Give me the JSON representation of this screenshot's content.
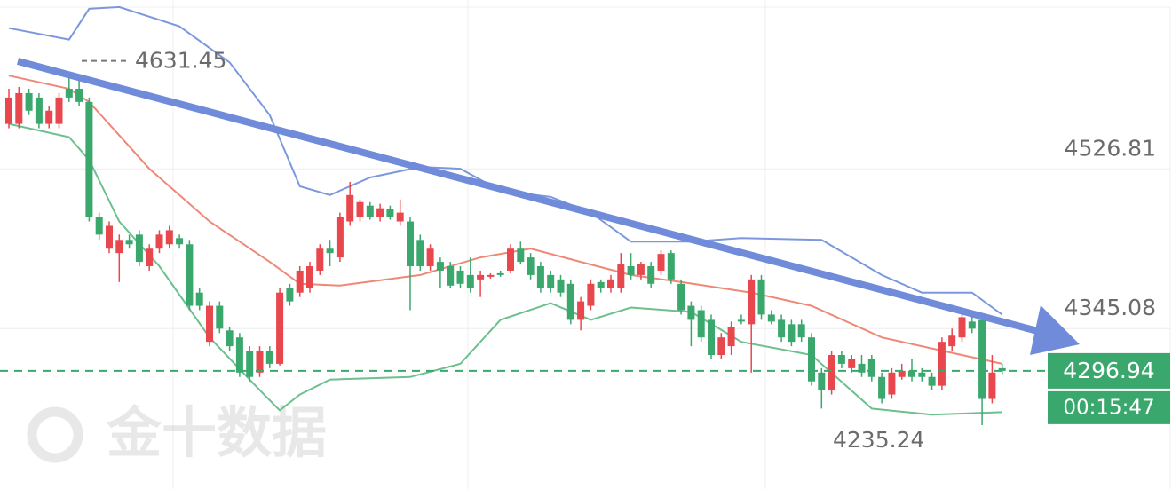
{
  "chart_data": {
    "type": "candlestick",
    "ylim": [
      4162.5,
      4719
    ],
    "yticks": [
      4526.81,
      4345.08
    ],
    "up_color": "#e8474d",
    "down_color": "#3aa76d",
    "last_price": 4296.94,
    "countdown": "00:15:47",
    "max_label": 4631.45,
    "min_label": 4235.24,
    "watermark": "金十数据",
    "ohlc": [
      [
        4578,
        4618,
        4573,
        4608
      ],
      [
        4578,
        4620,
        4573,
        4613
      ],
      [
        4613,
        4618,
        4588,
        4593
      ],
      [
        4608,
        4613,
        4573,
        4578
      ],
      [
        4578,
        4598,
        4573,
        4593
      ],
      [
        4578,
        4613,
        4573,
        4608
      ],
      [
        4618,
        4631.45,
        4603,
        4608
      ],
      [
        4618,
        4628,
        4598,
        4603
      ],
      [
        4603,
        4608,
        4467,
        4472
      ],
      [
        4472,
        4477,
        4446,
        4452
      ],
      [
        4436,
        4467,
        4431,
        4462
      ],
      [
        4431,
        4452,
        4398,
        4446
      ],
      [
        4446,
        4452,
        4436,
        4441
      ],
      [
        4452,
        4457,
        4416,
        4421
      ],
      [
        4416,
        4441,
        4411,
        4436
      ],
      [
        4436,
        4457,
        4431,
        4452
      ],
      [
        4441,
        4462,
        4436,
        4457
      ],
      [
        4448,
        4452,
        4436,
        4441
      ],
      [
        4441,
        4446,
        4366,
        4371
      ],
      [
        4386,
        4391,
        4366,
        4371
      ],
      [
        4330,
        4376,
        4325,
        4371
      ],
      [
        4371,
        4376,
        4340,
        4345
      ],
      [
        4343,
        4347,
        4320,
        4325
      ],
      [
        4335,
        4340,
        4290,
        4295
      ],
      [
        4320,
        4325,
        4285,
        4290
      ],
      [
        4295,
        4325,
        4290,
        4320
      ],
      [
        4320,
        4325,
        4300,
        4305
      ],
      [
        4305,
        4391,
        4303,
        4386
      ],
      [
        4391,
        4396,
        4371,
        4376
      ],
      [
        4386,
        4416,
        4381,
        4411
      ],
      [
        4391,
        4421,
        4386,
        4416
      ],
      [
        4411,
        4441,
        4406,
        4436
      ],
      [
        4436,
        4446,
        4416,
        4431
      ],
      [
        4426,
        4477,
        4421,
        4472
      ],
      [
        4467,
        4512,
        4462,
        4497
      ],
      [
        4472,
        4492,
        4467,
        4489
      ],
      [
        4485,
        4489,
        4469,
        4472
      ],
      [
        4472,
        4487,
        4467,
        4482
      ],
      [
        4481,
        4485,
        4469,
        4472
      ],
      [
        4467,
        4492,
        4462,
        4477
      ],
      [
        4467,
        4472,
        4366,
        4416
      ],
      [
        4446,
        4452,
        4411,
        4416
      ],
      [
        4416,
        4441,
        4411,
        4436
      ],
      [
        4421,
        4426,
        4391,
        4411
      ],
      [
        4416,
        4421,
        4391,
        4394
      ],
      [
        4411,
        4416,
        4391,
        4396
      ],
      [
        4406,
        4426,
        4386,
        4391
      ],
      [
        4401,
        4411,
        4381,
        4406
      ],
      [
        4404,
        4408,
        4402,
        4406
      ],
      [
        4408,
        4411,
        4404,
        4406
      ],
      [
        4411,
        4441,
        4408,
        4436
      ],
      [
        4436,
        4444,
        4418,
        4421
      ],
      [
        4426,
        4431,
        4401,
        4406
      ],
      [
        4416,
        4421,
        4386,
        4391
      ],
      [
        4406,
        4411,
        4386,
        4391
      ],
      [
        4401,
        4406,
        4381,
        4386
      ],
      [
        4396,
        4401,
        4350,
        4355
      ],
      [
        4355,
        4381,
        4343,
        4376
      ],
      [
        4371,
        4401,
        4366,
        4396
      ],
      [
        4398,
        4401,
        4386,
        4391
      ],
      [
        4391,
        4406,
        4386,
        4401
      ],
      [
        4391,
        4431,
        4386,
        4418
      ],
      [
        4416,
        4431,
        4401,
        4406
      ],
      [
        4406,
        4421,
        4401,
        4418
      ],
      [
        4416,
        4421,
        4391,
        4396
      ],
      [
        4411,
        4434,
        4406,
        4430
      ],
      [
        4431,
        4434,
        4396,
        4401
      ],
      [
        4396,
        4401,
        4361,
        4366
      ],
      [
        4371,
        4376,
        4325,
        4355
      ],
      [
        4366,
        4371,
        4330,
        4335
      ],
      [
        4355,
        4361,
        4310,
        4315
      ],
      [
        4315,
        4340,
        4310,
        4335
      ],
      [
        4325,
        4353,
        4315,
        4347
      ],
      [
        4355,
        4361,
        4350,
        4353
      ],
      [
        4350,
        4406,
        4295,
        4401
      ],
      [
        4401,
        4406,
        4355,
        4361
      ],
      [
        4361,
        4366,
        4350,
        4353
      ],
      [
        4355,
        4361,
        4330,
        4335
      ],
      [
        4350,
        4355,
        4325,
        4330
      ],
      [
        4350,
        4355,
        4330,
        4335
      ],
      [
        4335,
        4340,
        4280,
        4285
      ],
      [
        4295,
        4300,
        4254,
        4275
      ],
      [
        4275,
        4320,
        4270,
        4315
      ],
      [
        4315,
        4320,
        4300,
        4305
      ],
      [
        4300,
        4315,
        4295,
        4310
      ],
      [
        4305,
        4315,
        4290,
        4295
      ],
      [
        4310,
        4315,
        4285,
        4290
      ],
      [
        4290,
        4295,
        4260,
        4265
      ],
      [
        4270,
        4300,
        4265,
        4295
      ],
      [
        4290,
        4305,
        4287,
        4297
      ],
      [
        4297,
        4310,
        4285,
        4290
      ],
      [
        4295,
        4300,
        4285,
        4290
      ],
      [
        4290,
        4295,
        4275,
        4280
      ],
      [
        4280,
        4335,
        4275,
        4330
      ],
      [
        4325,
        4345,
        4320,
        4337
      ],
      [
        4335,
        4366,
        4330,
        4358
      ],
      [
        4353,
        4361,
        4340,
        4345
      ],
      [
        4355,
        4361,
        4235.24,
        4265
      ],
      [
        4265,
        4315,
        4260,
        4295
      ],
      [
        4300,
        4305,
        4293,
        4296.94
      ]
    ],
    "bands": [
      {
        "color": "#7b98de",
        "x": [
          0,
          6,
          8,
          11,
          17,
          22,
          26,
          29,
          32,
          36,
          41,
          45,
          49,
          54,
          58,
          62,
          68,
          73,
          81,
          87,
          91,
          96,
          99
        ],
        "values": [
          4687,
          4674,
          4709,
          4711,
          4689,
          4648,
          4588,
          4507,
          4497,
          4517,
          4529,
          4527,
          4502,
          4495,
          4477,
          4444,
          4444,
          4448,
          4446,
          4406,
          4386,
          4386,
          4361
        ]
      },
      {
        "color": "#ee8877",
        "x": [
          0,
          6,
          8,
          14,
          20,
          26,
          29,
          33,
          41,
          47,
          52,
          57,
          62,
          67,
          74,
          80,
          87,
          93,
          99
        ],
        "values": [
          4633,
          4618,
          4603,
          4527,
          4467,
          4421,
          4396,
          4394,
          4406,
          4426,
          4436,
          4421,
          4406,
          4398,
          4386,
          4371,
          4335,
          4320,
          4305
        ]
      },
      {
        "color": "#6cc08e",
        "x": [
          0,
          6,
          8,
          11,
          15,
          20,
          25,
          27,
          29,
          32,
          40,
          45,
          49,
          54,
          58,
          62,
          68,
          73,
          80,
          86,
          92,
          99
        ],
        "values": [
          4578,
          4563,
          4537,
          4467,
          4416,
          4335,
          4275,
          4252,
          4270,
          4287,
          4290,
          4305,
          4355,
          4374,
          4355,
          4369,
          4364,
          4330,
          4315,
          4254,
          4247,
          4250
        ]
      }
    ]
  }
}
